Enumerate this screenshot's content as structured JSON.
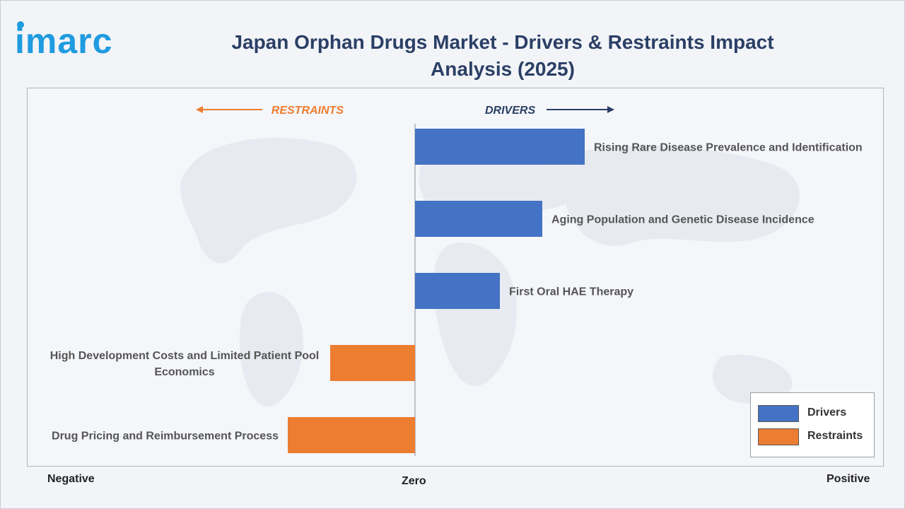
{
  "brand": {
    "logo_text": "imarc"
  },
  "chart_data": {
    "type": "bar",
    "orientation": "horizontal",
    "title": "Japan Orphan Drugs Market - Drivers & Restraints Impact Analysis (2025)",
    "direction_labels": {
      "restraints": "RESTRAINTS",
      "drivers": "DRIVERS"
    },
    "axis_labels": {
      "negative": "Negative",
      "zero": "Zero",
      "positive": "Positive"
    },
    "xlim": [
      -5,
      5
    ],
    "categories": [
      "Rising Rare Disease Prevalence and Identification",
      "Aging Population and Genetic Disease Incidence",
      "First Oral HAE Therapy",
      "High Development Costs and Limited Patient Pool Economics",
      "Drug Pricing and Reimbursement Process"
    ],
    "label_lines": [
      [
        "Rising Rare Disease Prevalence and Identification"
      ],
      [
        "Aging Population and Genetic Disease Incidence"
      ],
      [
        "First Oral HAE Therapy"
      ],
      [
        "High Development Costs and Limited Patient Pool",
        "Economics"
      ],
      [
        "Drug Pricing and Reimbursement Process"
      ]
    ],
    "values": [
      4.0,
      3.0,
      2.0,
      -2.0,
      -3.0
    ],
    "series_of_bar": [
      "Drivers",
      "Drivers",
      "Drivers",
      "Restraints",
      "Restraints"
    ],
    "legend": [
      {
        "name": "Drivers",
        "color": "#4472c4"
      },
      {
        "name": "Restraints",
        "color": "#ed7d31"
      }
    ],
    "legend_position": "bottom-right",
    "grid": false,
    "colors": {
      "drivers": "#4472c4",
      "restraints": "#ed7d31",
      "restraints_text": "#ed7d31",
      "drivers_text": "#2b3f66"
    }
  }
}
